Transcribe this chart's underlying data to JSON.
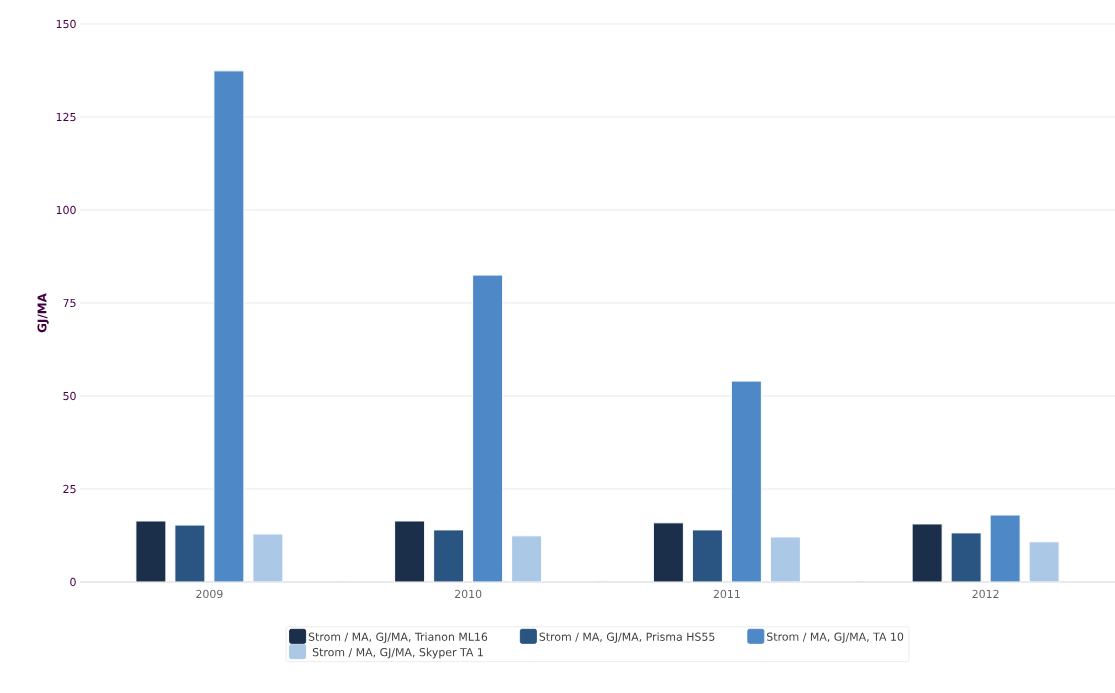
{
  "chart_data": {
    "type": "bar",
    "ylabel": "GJ/MA",
    "categories": [
      "2009",
      "2010",
      "2011",
      "2012"
    ],
    "series": [
      {
        "name": "Strom / MA, GJ/MA, Trianon ML16",
        "color": "#1b2f4a",
        "values": [
          16.4,
          16.4,
          15.9,
          15.6
        ]
      },
      {
        "name": "Strom / MA, GJ/MA, Prisma HS55",
        "color": "#2a5482",
        "values": [
          15.3,
          14,
          14,
          13.2
        ]
      },
      {
        "name": "Strom / MA, GJ/MA, TA 10",
        "color": "#4e88c7",
        "values": [
          137.4,
          82.5,
          54,
          18
        ]
      },
      {
        "name": "Strom / MA, GJ/MA, Skyper TA 1",
        "color": "#abc8e6",
        "values": [
          12.9,
          12.4,
          12.1,
          10.8
        ]
      }
    ],
    "ylim": [
      0,
      150
    ],
    "yticks": [
      0,
      25,
      50,
      75,
      100,
      125,
      150
    ],
    "grid": "y",
    "legend": "bottom"
  }
}
